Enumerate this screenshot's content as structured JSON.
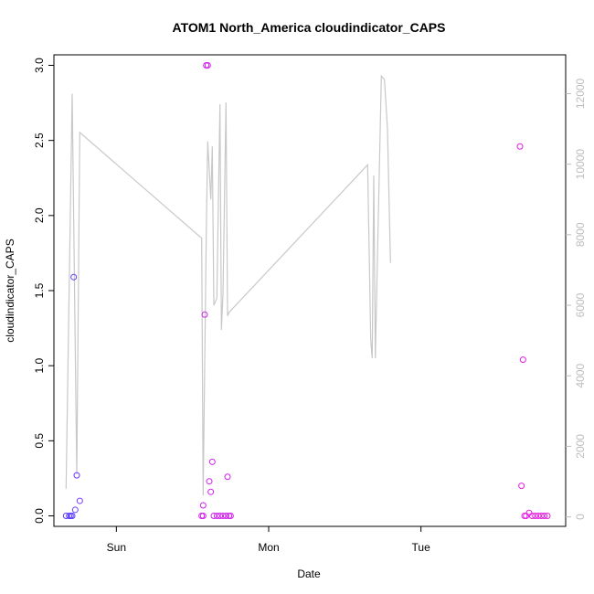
{
  "chart_data": {
    "type": "scatter",
    "title": "ATOM1 North_America cloudindicator_CAPS",
    "xlabel": "Date",
    "ylabel": "cloudindicator_CAPS",
    "xlim": [
      -0.41,
      2.95
    ],
    "ylim": [
      -0.07,
      3.07
    ],
    "x_ticks": [
      {
        "value": 0.0,
        "label": "Sun"
      },
      {
        "value": 1.0,
        "label": "Mon"
      },
      {
        "value": 2.0,
        "label": "Tue"
      }
    ],
    "y_ticks": [
      "0.0",
      "0.5",
      "1.0",
      "1.5",
      "2.0",
      "2.5",
      "3.0"
    ],
    "y2_lim": [
      -270,
      13100
    ],
    "y2_ticks": [
      "0",
      "2000",
      "4000",
      "6000",
      "8000",
      "10000",
      "12000"
    ],
    "grid": false,
    "colors": {
      "line": "#c8c8c8",
      "right_axis": "#bdbdbd"
    },
    "points": [
      {
        "x": -0.33,
        "y": 0.0,
        "color": "#5b3bff"
      },
      {
        "x": -0.31,
        "y": 0.0,
        "color": "#5b3bff"
      },
      {
        "x": -0.3,
        "y": 0.0,
        "color": "#5b3bff"
      },
      {
        "x": -0.29,
        "y": 0.0,
        "color": "#5b3bff"
      },
      {
        "x": -0.28,
        "y": 1.59,
        "color": "#6a3bff"
      },
      {
        "x": -0.27,
        "y": 0.04,
        "color": "#6a3bff"
      },
      {
        "x": -0.26,
        "y": 0.27,
        "color": "#6a3bff"
      },
      {
        "x": -0.24,
        "y": 0.1,
        "color": "#7a3bff"
      },
      {
        "x": 0.56,
        "y": 0.0,
        "color": "#d21ef0"
      },
      {
        "x": 0.57,
        "y": 0.0,
        "color": "#d21ef0"
      },
      {
        "x": 0.57,
        "y": 0.07,
        "color": "#d21ef0"
      },
      {
        "x": 0.58,
        "y": 1.34,
        "color": "#d21ef0"
      },
      {
        "x": 0.59,
        "y": 3.0,
        "color": "#d21ef0"
      },
      {
        "x": 0.6,
        "y": 3.0,
        "color": "#d21ef0"
      },
      {
        "x": 0.61,
        "y": 0.23,
        "color": "#d21ef0"
      },
      {
        "x": 0.62,
        "y": 0.16,
        "color": "#d21ef0"
      },
      {
        "x": 0.63,
        "y": 0.36,
        "color": "#d21ef0"
      },
      {
        "x": 0.64,
        "y": 0.0,
        "color": "#d21ef0"
      },
      {
        "x": 0.66,
        "y": 0.0,
        "color": "#d21ef0"
      },
      {
        "x": 0.68,
        "y": 0.0,
        "color": "#d21ef0"
      },
      {
        "x": 0.7,
        "y": 0.0,
        "color": "#d21ef0"
      },
      {
        "x": 0.72,
        "y": 0.0,
        "color": "#d21ef0"
      },
      {
        "x": 0.73,
        "y": 0.26,
        "color": "#d21ef0"
      },
      {
        "x": 0.74,
        "y": 0.0,
        "color": "#d21ef0"
      },
      {
        "x": 0.75,
        "y": 0.0,
        "color": "#d21ef0"
      },
      {
        "x": 2.65,
        "y": 2.46,
        "color": "#e51ee0"
      },
      {
        "x": 2.66,
        "y": 0.2,
        "color": "#e51ee0"
      },
      {
        "x": 2.67,
        "y": 1.04,
        "color": "#e51ee0"
      },
      {
        "x": 2.68,
        "y": 0.0,
        "color": "#e51ee0"
      },
      {
        "x": 2.69,
        "y": 0.0,
        "color": "#e51ee0"
      },
      {
        "x": 2.71,
        "y": 0.02,
        "color": "#e51ee0"
      },
      {
        "x": 2.73,
        "y": 0.0,
        "color": "#e51ee0"
      },
      {
        "x": 2.75,
        "y": 0.0,
        "color": "#e51ee0"
      },
      {
        "x": 2.77,
        "y": 0.0,
        "color": "#e51ee0"
      },
      {
        "x": 2.79,
        "y": 0.0,
        "color": "#e51ee0"
      },
      {
        "x": 2.81,
        "y": 0.0,
        "color": "#e51ee0"
      },
      {
        "x": 2.83,
        "y": 0.0,
        "color": "#e51ee0"
      }
    ],
    "line_series": [
      [
        -0.33,
        800
      ],
      [
        -0.29,
        12000
      ],
      [
        -0.26,
        1200
      ],
      [
        -0.24,
        10900
      ],
      [
        0.56,
        7900
      ],
      [
        0.57,
        600
      ],
      [
        0.59,
        8000
      ],
      [
        0.6,
        10650
      ],
      [
        0.62,
        9000
      ],
      [
        0.63,
        10500
      ],
      [
        0.64,
        6000
      ],
      [
        0.66,
        6200
      ],
      [
        0.68,
        11700
      ],
      [
        0.69,
        5300
      ],
      [
        0.7,
        6300
      ],
      [
        0.72,
        11750
      ],
      [
        0.73,
        5700
      ],
      [
        0.74,
        5800
      ],
      [
        1.65,
        9980
      ],
      [
        1.67,
        5000
      ],
      [
        1.68,
        4500
      ],
      [
        1.69,
        9680
      ],
      [
        1.7,
        4500
      ],
      [
        1.72,
        8500
      ],
      [
        1.74,
        12500
      ],
      [
        1.76,
        12400
      ],
      [
        1.78,
        11000
      ],
      [
        1.8,
        7200
      ]
    ]
  }
}
